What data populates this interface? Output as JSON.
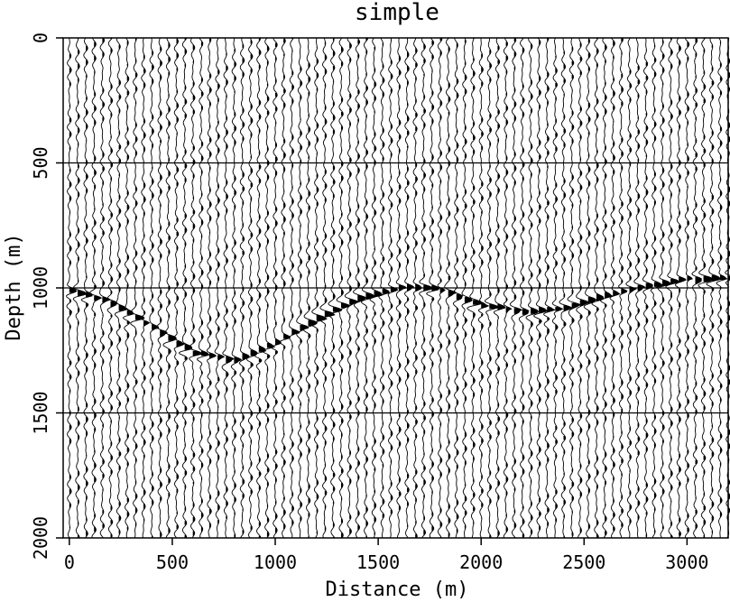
{
  "chart_data": {
    "type": "line",
    "subtype": "seismic-wiggle-section",
    "title": "simple",
    "xlabel": "Distance (m)",
    "ylabel": "Depth (m)",
    "xlim": [
      -30,
      3200
    ],
    "ylim": [
      2000,
      0
    ],
    "y_axis_inverted": true,
    "xticks": [
      0,
      500,
      1000,
      1500,
      2000,
      2500,
      3000
    ],
    "xtick_labels": [
      "0",
      "500",
      "1000",
      "1500",
      "2000",
      "2500",
      "3000"
    ],
    "yticks": [
      0,
      500,
      1000,
      1500,
      2000
    ],
    "ytick_labels": [
      "0",
      "500",
      "1000",
      "1500",
      "2000"
    ],
    "grid_lines_depth": [
      500,
      1000,
      1500
    ],
    "trace_spacing_m": 40,
    "reflector": {
      "name": "",
      "x": [
        0,
        200,
        400,
        600,
        800,
        1000,
        1200,
        1400,
        1600,
        1700,
        1800,
        2000,
        2200,
        2400,
        2600,
        2800,
        3000,
        3200
      ],
      "depth": [
        1010,
        1060,
        1160,
        1260,
        1290,
        1220,
        1120,
        1040,
        1000,
        995,
        1010,
        1070,
        1095,
        1080,
        1030,
        990,
        965,
        960
      ]
    },
    "colors": {
      "background": "#ffffff",
      "ink": "#000000"
    }
  }
}
